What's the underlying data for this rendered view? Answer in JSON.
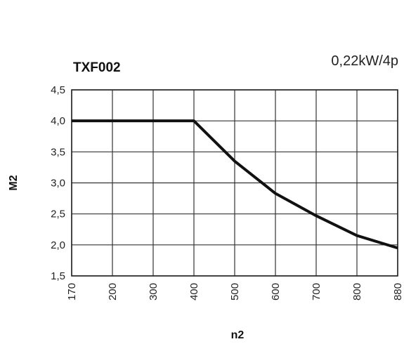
{
  "chart_data": {
    "type": "line",
    "title": "TXF002",
    "subtitle": "0,22kW/4p",
    "xlabel": "n2",
    "ylabel": "M2",
    "x_categories": [
      "170",
      "200",
      "300",
      "400",
      "500",
      "600",
      "700",
      "800",
      "880"
    ],
    "y_ticks": [
      "1,5",
      "2,0",
      "2,5",
      "3,0",
      "3,5",
      "4,0",
      "4,5"
    ],
    "ylim": [
      1.5,
      4.5
    ],
    "grid": true,
    "series": [
      {
        "x": [
          "170",
          "200",
          "300",
          "400",
          "500",
          "600",
          "700",
          "800",
          "880"
        ],
        "y": [
          4.0,
          4.0,
          4.0,
          4.0,
          3.35,
          2.83,
          2.47,
          2.15,
          1.95
        ]
      }
    ]
  }
}
